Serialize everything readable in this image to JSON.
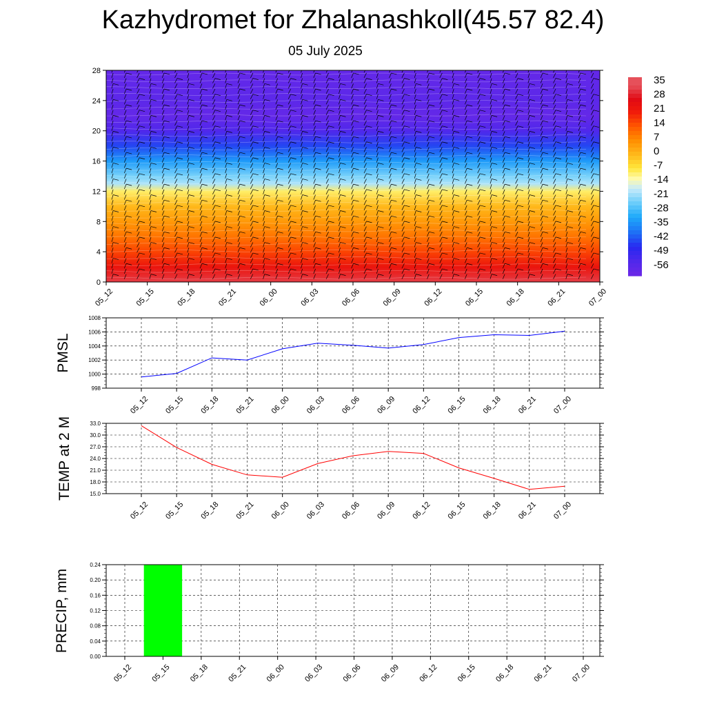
{
  "title": "Kazhydromet for Zhalanashkoll(45.57 82.4)",
  "subtitle": "05 July 2025",
  "time_labels": [
    "05_12",
    "05_15",
    "05_18",
    "05_21",
    "06_00",
    "06_03",
    "06_06",
    "06_09",
    "06_12",
    "06_15",
    "06_18",
    "06_21",
    "07_00"
  ],
  "colorbar": {
    "labels": [
      "35",
      "28",
      "21",
      "14",
      "7",
      "0",
      "-7",
      "-14",
      "-21",
      "-28",
      "-35",
      "-42",
      "-49",
      "-56"
    ]
  },
  "chart_data": [
    {
      "type": "heatmap",
      "panel": "upper-air temperature and wind",
      "y_ticks": [
        0,
        4,
        8,
        12,
        16,
        20,
        24,
        28
      ],
      "ylim": [
        0,
        28
      ],
      "x": [
        "05_12",
        "05_15",
        "05_18",
        "05_21",
        "06_00",
        "06_03",
        "06_06",
        "06_09",
        "06_12",
        "06_15",
        "06_18",
        "06_21",
        "07_00"
      ],
      "temperature_profile": [
        {
          "level": 0,
          "value": 33
        },
        {
          "level": 2,
          "value": 24
        },
        {
          "level": 4,
          "value": 17
        },
        {
          "level": 6,
          "value": 11
        },
        {
          "level": 8,
          "value": 6
        },
        {
          "level": 10,
          "value": 1
        },
        {
          "level": 12,
          "value": -8
        },
        {
          "level": 13,
          "value": -18
        },
        {
          "level": 14,
          "value": -22
        },
        {
          "level": 16,
          "value": -32
        },
        {
          "level": 18,
          "value": -42
        },
        {
          "level": 20,
          "value": -52
        },
        {
          "level": 22,
          "value": -57
        },
        {
          "level": 24,
          "value": -55
        },
        {
          "level": 26,
          "value": -56
        },
        {
          "level": 28,
          "value": -57
        }
      ],
      "grid": false
    },
    {
      "type": "line",
      "ylabel": "PMSL",
      "ylim": [
        998,
        1008
      ],
      "y_ticks": [
        "998",
        "1000",
        "1002",
        "1004",
        "1006",
        "1008"
      ],
      "x": [
        "05_12",
        "05_15",
        "05_18",
        "05_21",
        "06_00",
        "06_03",
        "06_06",
        "06_09",
        "06_12",
        "06_15",
        "06_18",
        "06_21",
        "07_00"
      ],
      "values": [
        999.6,
        1000.1,
        1002.3,
        1002.0,
        1003.6,
        1004.4,
        1004.1,
        1003.7,
        1004.2,
        1005.2,
        1005.6,
        1005.5,
        1006.1
      ],
      "color": "#0000ff",
      "grid": true
    },
    {
      "type": "line",
      "ylabel": "TEMP at 2 M",
      "ylim": [
        15.0,
        33.0
      ],
      "y_ticks": [
        "15.0",
        "18.0",
        "21.0",
        "24.0",
        "27.0",
        "30.0",
        "33.0"
      ],
      "x": [
        "05_12",
        "05_15",
        "05_18",
        "05_21",
        "06_00",
        "06_03",
        "06_06",
        "06_09",
        "06_12",
        "06_15",
        "06_18",
        "06_21",
        "07_00"
      ],
      "values": [
        32.4,
        26.8,
        22.5,
        19.8,
        19.2,
        22.7,
        24.7,
        25.8,
        25.3,
        21.6,
        18.9,
        16.1,
        16.9
      ],
      "color": "#ff0000",
      "grid": true
    },
    {
      "type": "bar",
      "ylabel": "PRECIP, mm",
      "ylim": [
        0.0,
        0.24
      ],
      "y_ticks": [
        "0.00",
        "0.04",
        "0.08",
        "0.12",
        "0.16",
        "0.20",
        "0.24"
      ],
      "x": [
        "05_12",
        "05_15",
        "05_18",
        "05_21",
        "06_00",
        "06_03",
        "06_06",
        "06_09",
        "06_12",
        "06_15",
        "06_18",
        "06_21",
        "07_00"
      ],
      "values": [
        0,
        0.24,
        0,
        0,
        0,
        0,
        0,
        0,
        0,
        0,
        0,
        0,
        0
      ],
      "color": "#00ff00",
      "grid": true
    }
  ]
}
